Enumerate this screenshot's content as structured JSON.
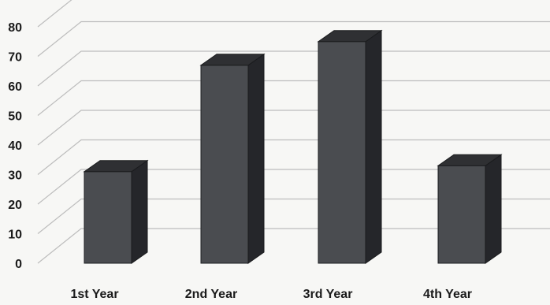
{
  "chart_data": {
    "type": "bar",
    "style": "3d-column",
    "categories": [
      "1st Year",
      "2nd Year",
      "3rd Year",
      "4th Year"
    ],
    "values": [
      31,
      67,
      75,
      33
    ],
    "ylim": [
      0,
      80
    ],
    "yticks": [
      0,
      10,
      20,
      30,
      40,
      50,
      60,
      70,
      80
    ],
    "grid": true,
    "legend": "none",
    "title": "",
    "xlabel": "",
    "ylabel": ""
  },
  "colors": {
    "bar_front": "#4a4c50",
    "bar_top": "#2f3033",
    "bar_side": "#25262a",
    "grid": "#bdbdbd",
    "background": "#f7f7f5"
  }
}
